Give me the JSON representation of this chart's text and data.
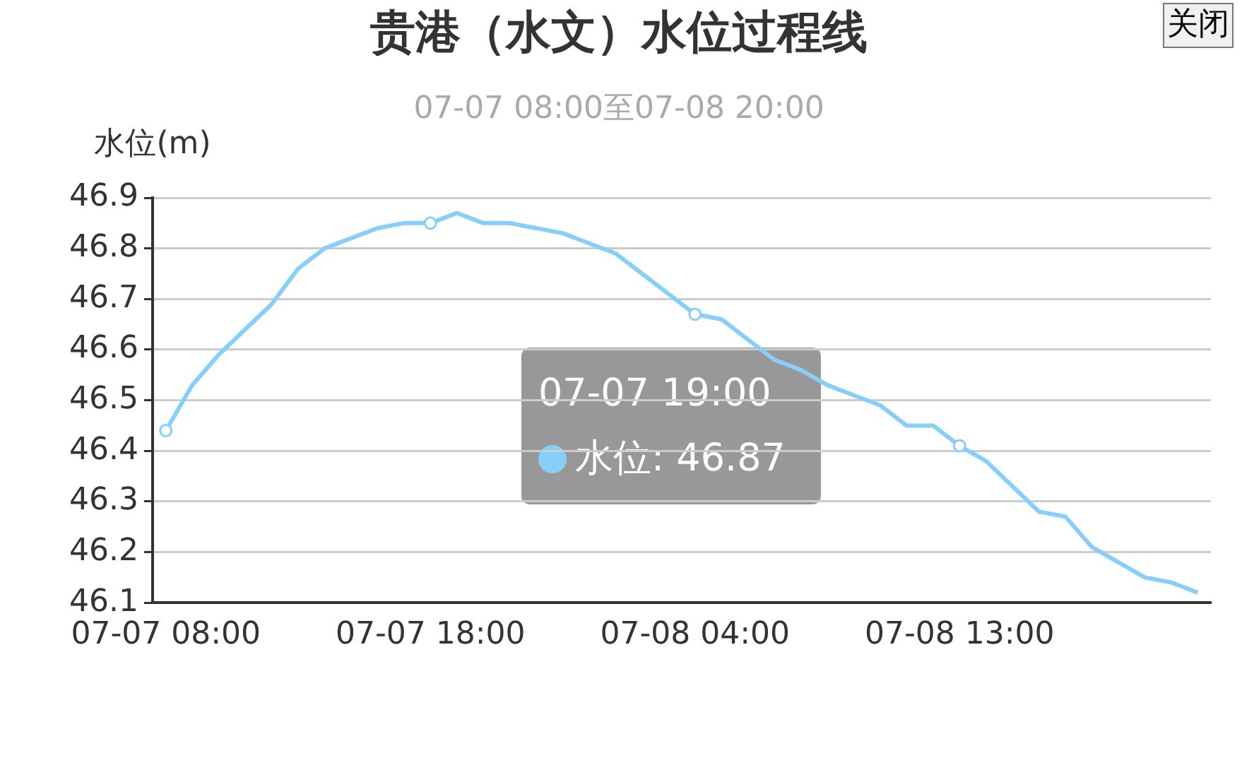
{
  "chart_data": {
    "type": "line",
    "title": "贵港（水文）水位过程线",
    "subtitle": "07-07 08:00至07-08 20:00",
    "ylabel": "水位(m)",
    "categories": [
      "07-07 08:00",
      null,
      null,
      null,
      null,
      null,
      null,
      null,
      null,
      null,
      "07-07 18:00",
      null,
      null,
      null,
      null,
      null,
      null,
      null,
      null,
      null,
      "07-08 04:00",
      null,
      null,
      null,
      null,
      null,
      null,
      null,
      null,
      null,
      "07-08 13:00",
      null,
      null,
      null,
      null,
      null,
      null,
      null,
      null,
      null
    ],
    "series": [
      {
        "name": "水位",
        "color": "#87cefa",
        "values": [
          46.44,
          46.53,
          46.59,
          46.64,
          46.69,
          46.76,
          46.8,
          46.82,
          46.84,
          46.85,
          46.85,
          46.87,
          46.85,
          46.85,
          46.84,
          46.83,
          46.81,
          46.79,
          46.75,
          46.71,
          46.67,
          46.66,
          46.62,
          46.58,
          46.56,
          46.53,
          46.51,
          46.49,
          46.45,
          46.45,
          46.41,
          46.38,
          46.33,
          46.28,
          46.27,
          46.21,
          46.18,
          46.15,
          46.14,
          46.12
        ]
      }
    ],
    "ylim": [
      46.1,
      46.9
    ],
    "yticks": [
      46.1,
      46.2,
      46.3,
      46.4,
      46.5,
      46.6,
      46.7,
      46.8,
      46.9
    ],
    "grid": "y",
    "legend": "center",
    "line_style": "solid",
    "annotations": [
      "07-07 19:00",
      ": 46.87",
      "关闭"
    ]
  }
}
